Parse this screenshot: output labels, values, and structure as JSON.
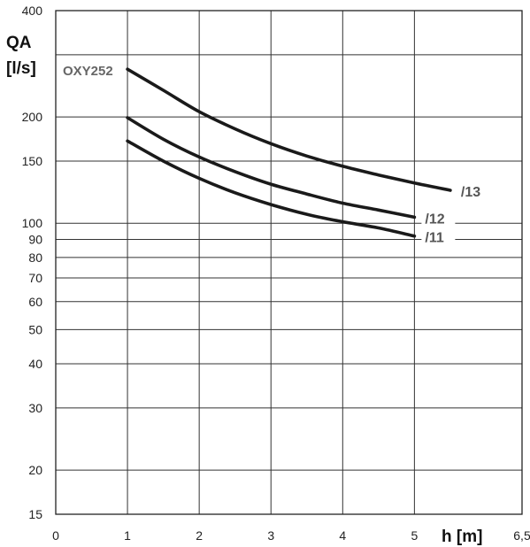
{
  "chart_data": {
    "type": "line",
    "chart_label": "OXY252",
    "ylabel_line1": "QA",
    "ylabel_line2": "[l/s]",
    "xlabel": "h [m]",
    "yscale": "log",
    "grid": true,
    "xlim": [
      0,
      6.5
    ],
    "ylim": [
      15,
      400
    ],
    "x_ticks": [
      {
        "value": 0,
        "label": "0"
      },
      {
        "value": 1,
        "label": "1"
      },
      {
        "value": 2,
        "label": "2"
      },
      {
        "value": 3,
        "label": "3"
      },
      {
        "value": 4,
        "label": "4"
      },
      {
        "value": 5,
        "label": "5"
      },
      {
        "value": 6.5,
        "label": "6,5"
      }
    ],
    "y_ticks": [
      {
        "value": 15,
        "label": "15"
      },
      {
        "value": 20,
        "label": "20"
      },
      {
        "value": 30,
        "label": "30"
      },
      {
        "value": 40,
        "label": "40"
      },
      {
        "value": 50,
        "label": "50"
      },
      {
        "value": 60,
        "label": "60"
      },
      {
        "value": 70,
        "label": "70"
      },
      {
        "value": 80,
        "label": "80"
      },
      {
        "value": 90,
        "label": "90"
      },
      {
        "value": 100,
        "label": "100"
      },
      {
        "value": 150,
        "label": "150"
      },
      {
        "value": 200,
        "label": "200"
      },
      {
        "value": 300,
        "label": ""
      },
      {
        "value": 400,
        "label": "400"
      }
    ],
    "series": [
      {
        "name": "/13",
        "x": [
          1,
          1.5,
          2,
          2.5,
          3,
          3.5,
          4,
          4.5,
          5,
          5.5
        ],
        "values": [
          273,
          238,
          207,
          185,
          168,
          155,
          145,
          137,
          130,
          124
        ]
      },
      {
        "name": "/12",
        "x": [
          1,
          1.5,
          2,
          2.5,
          3,
          3.5,
          4,
          4.5,
          5
        ],
        "values": [
          199,
          173,
          154,
          140,
          129,
          121,
          114,
          109,
          104
        ]
      },
      {
        "name": "/11",
        "x": [
          1,
          1.5,
          2,
          2.5,
          3,
          3.5,
          4,
          4.5,
          5
        ],
        "values": [
          171,
          150,
          134,
          122,
          113,
          106,
          101,
          97,
          92
        ]
      }
    ]
  }
}
